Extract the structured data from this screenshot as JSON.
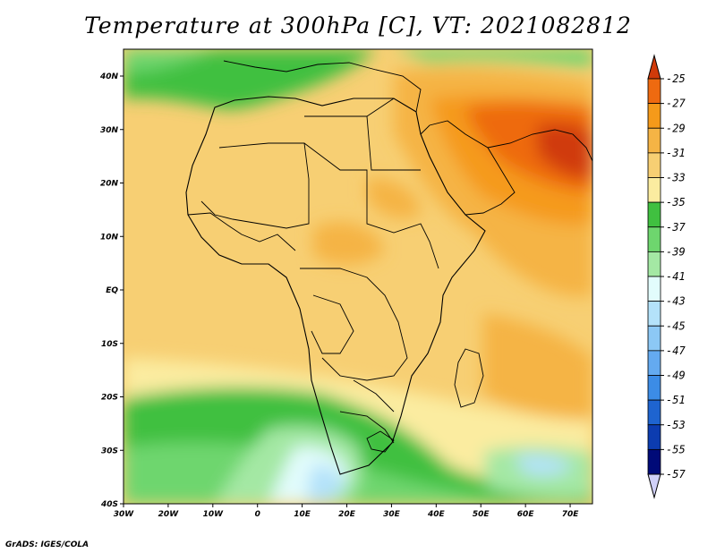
{
  "title": "Temperature at 300hPa [C], VT: 2021082812",
  "credit": "GrADS: IGES/COLA",
  "axes": {
    "lon_ticks": [
      "30W",
      "20W",
      "10W",
      "0",
      "10E",
      "20E",
      "30E",
      "40E",
      "50E",
      "60E",
      "70E"
    ],
    "lat_ticks": [
      "40N",
      "30N",
      "20N",
      "10N",
      "EQ",
      "10S",
      "20S",
      "30S",
      "40S"
    ]
  },
  "colorbar": {
    "labels": [
      "-25",
      "-27",
      "-29",
      "-31",
      "-33",
      "-35",
      "-37",
      "-39",
      "-41",
      "-43",
      "-45",
      "-47",
      "-49",
      "-51",
      "-53",
      "-55",
      "-57"
    ],
    "colors": [
      "#d03a0a",
      "#ee6a10",
      "#f59a1a",
      "#f5b445",
      "#f7cf73",
      "#fbeca0",
      "#40c040",
      "#6ed66e",
      "#a4e8a4",
      "#e2fcfc",
      "#b4e2fa",
      "#8cc8f5",
      "#64aaf0",
      "#3c8ce6",
      "#1e64d0",
      "#0c3cb0",
      "#000a78"
    ],
    "over_color": "#d03a0a",
    "under_color": "#d0d0f8"
  }
}
